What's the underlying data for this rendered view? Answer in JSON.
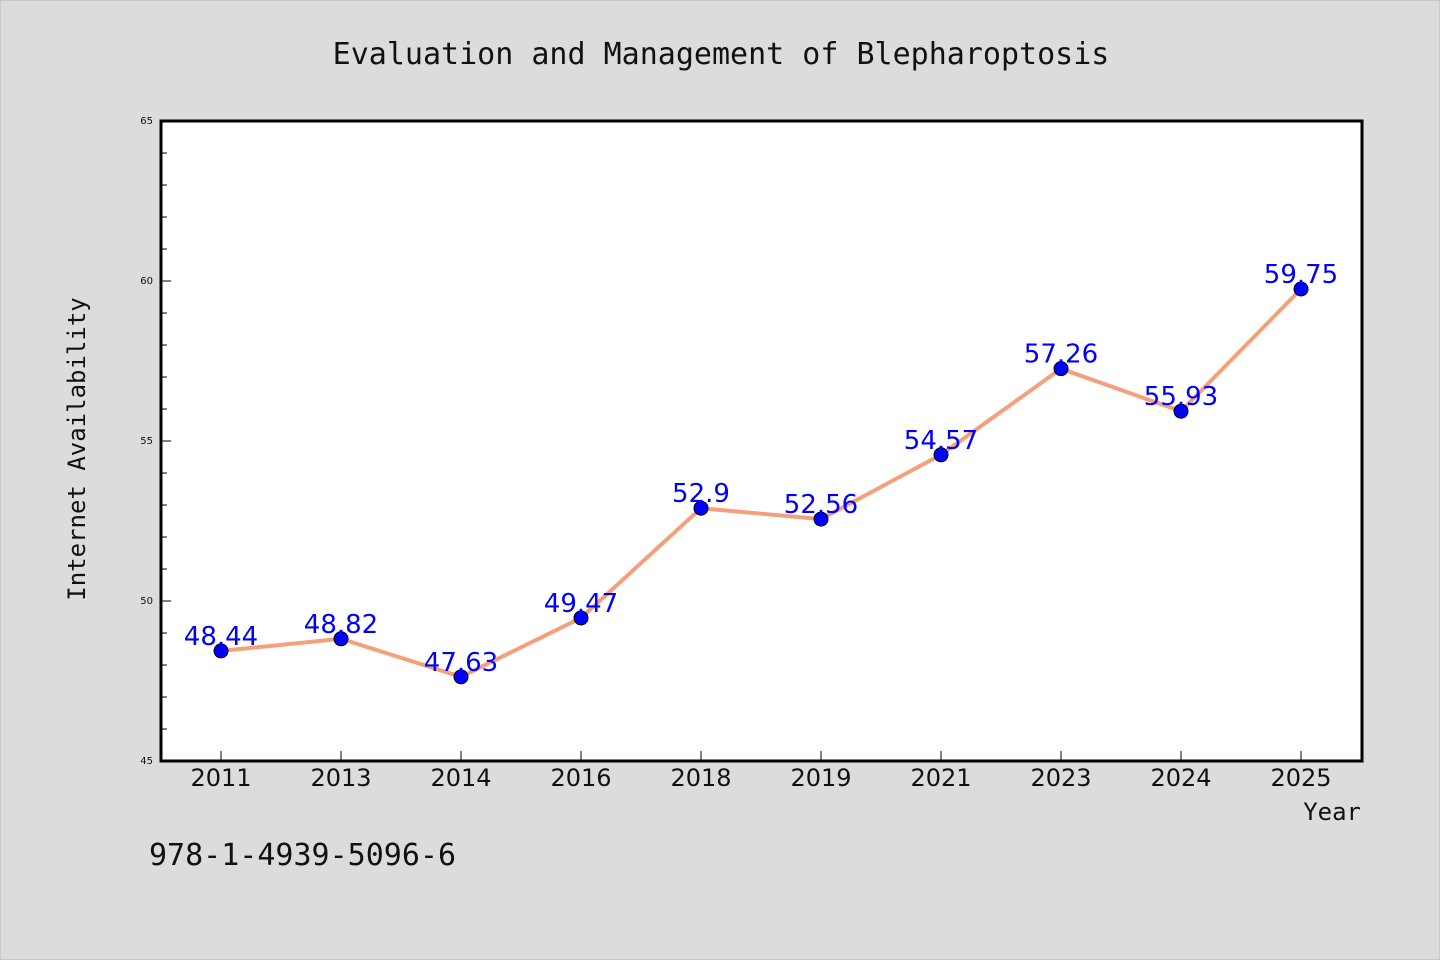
{
  "chart_data": {
    "type": "line",
    "title": "Evaluation and Management of Blepharoptosis",
    "xlabel": "Year",
    "ylabel": "Internet Availability",
    "categories": [
      "2011",
      "2013",
      "2014",
      "2016",
      "2018",
      "2019",
      "2021",
      "2023",
      "2024",
      "2025"
    ],
    "values": [
      48.44,
      48.82,
      47.63,
      49.47,
      52.9,
      52.56,
      54.57,
      57.26,
      55.93,
      59.75
    ],
    "ylim": [
      45,
      65
    ],
    "yticks": [
      45,
      50,
      55,
      60,
      65
    ],
    "grid": false,
    "line_color": "#f4a07a",
    "marker_color": "#0000ff",
    "label_color": "#0000ff"
  },
  "footer": {
    "identifier": "978-1-4939-5096-6"
  }
}
